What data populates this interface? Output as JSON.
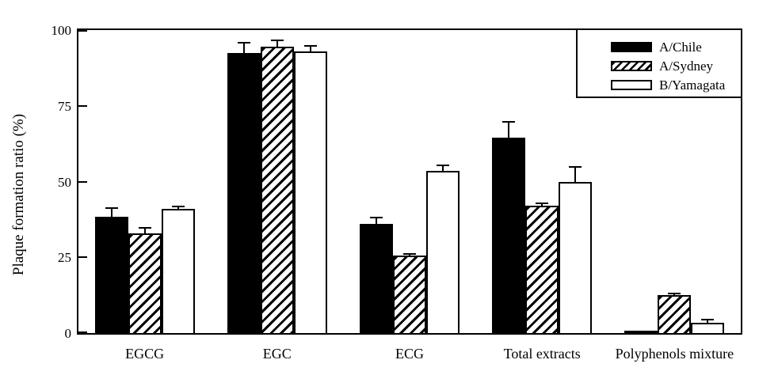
{
  "figure": {
    "background": "#ffffff",
    "frame_color": "#000000"
  },
  "chart_data": {
    "type": "bar",
    "title": "",
    "xlabel": "",
    "ylabel": "Plaque formation ratio (%)",
    "ylim": [
      0,
      100
    ],
    "yticks": [
      0,
      25,
      50,
      75,
      100
    ],
    "grid": false,
    "legend_position": "top-right-inside",
    "error_bars": "upper-cap",
    "categories": [
      "EGCG",
      "EGC",
      "ECG",
      "Total extracts",
      "Polyphenols mixture"
    ],
    "series": [
      {
        "name": "A/Chile",
        "pattern": "solid-black",
        "color": "#000000",
        "values": [
          38.5,
          92.5,
          36,
          64.5,
          0.7
        ],
        "errors": [
          3,
          3.5,
          2.5,
          5.5,
          0
        ]
      },
      {
        "name": "A/Sydney",
        "pattern": "hatched",
        "color": "#000000",
        "values": [
          33,
          94.5,
          25.5,
          42,
          12.5
        ],
        "errors": [
          2,
          2.5,
          1,
          1,
          0.8
        ]
      },
      {
        "name": "B/Yamagata",
        "pattern": "white",
        "color": "#ffffff",
        "values": [
          41,
          93,
          53.5,
          50,
          3.5
        ],
        "errors": [
          1,
          2,
          2,
          5,
          1.2
        ]
      }
    ]
  }
}
